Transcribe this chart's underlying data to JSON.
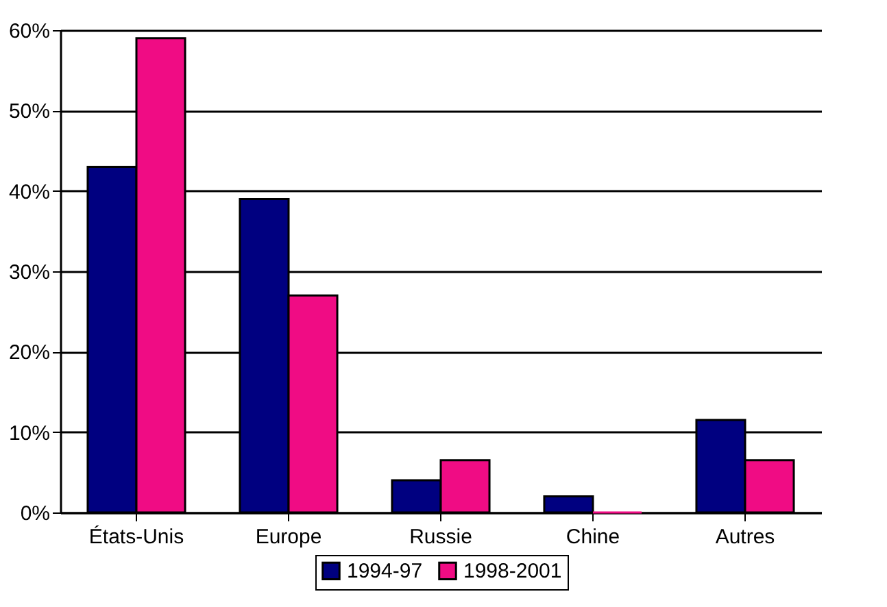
{
  "chart_data": {
    "type": "bar",
    "categories": [
      "États-Unis",
      "Europe",
      "Russie",
      "Chine",
      "Autres"
    ],
    "series": [
      {
        "name": "1994-97",
        "color": "#000080",
        "values": [
          43,
          39,
          4,
          2,
          11.5
        ]
      },
      {
        "name": "1998-2001",
        "color": "#f00c84",
        "values": [
          59,
          27,
          6.5,
          0,
          6.5
        ]
      }
    ],
    "ylim": [
      0,
      60
    ],
    "yticks": [
      {
        "value": 0,
        "label": "0%"
      },
      {
        "value": 10,
        "label": "10%"
      },
      {
        "value": 20,
        "label": "20%"
      },
      {
        "value": 30,
        "label": "30%"
      },
      {
        "value": 40,
        "label": "40%"
      },
      {
        "value": 50,
        "label": "50%"
      },
      {
        "value": 60,
        "label": "60%"
      }
    ],
    "grid": "y",
    "legend": "bottom"
  }
}
